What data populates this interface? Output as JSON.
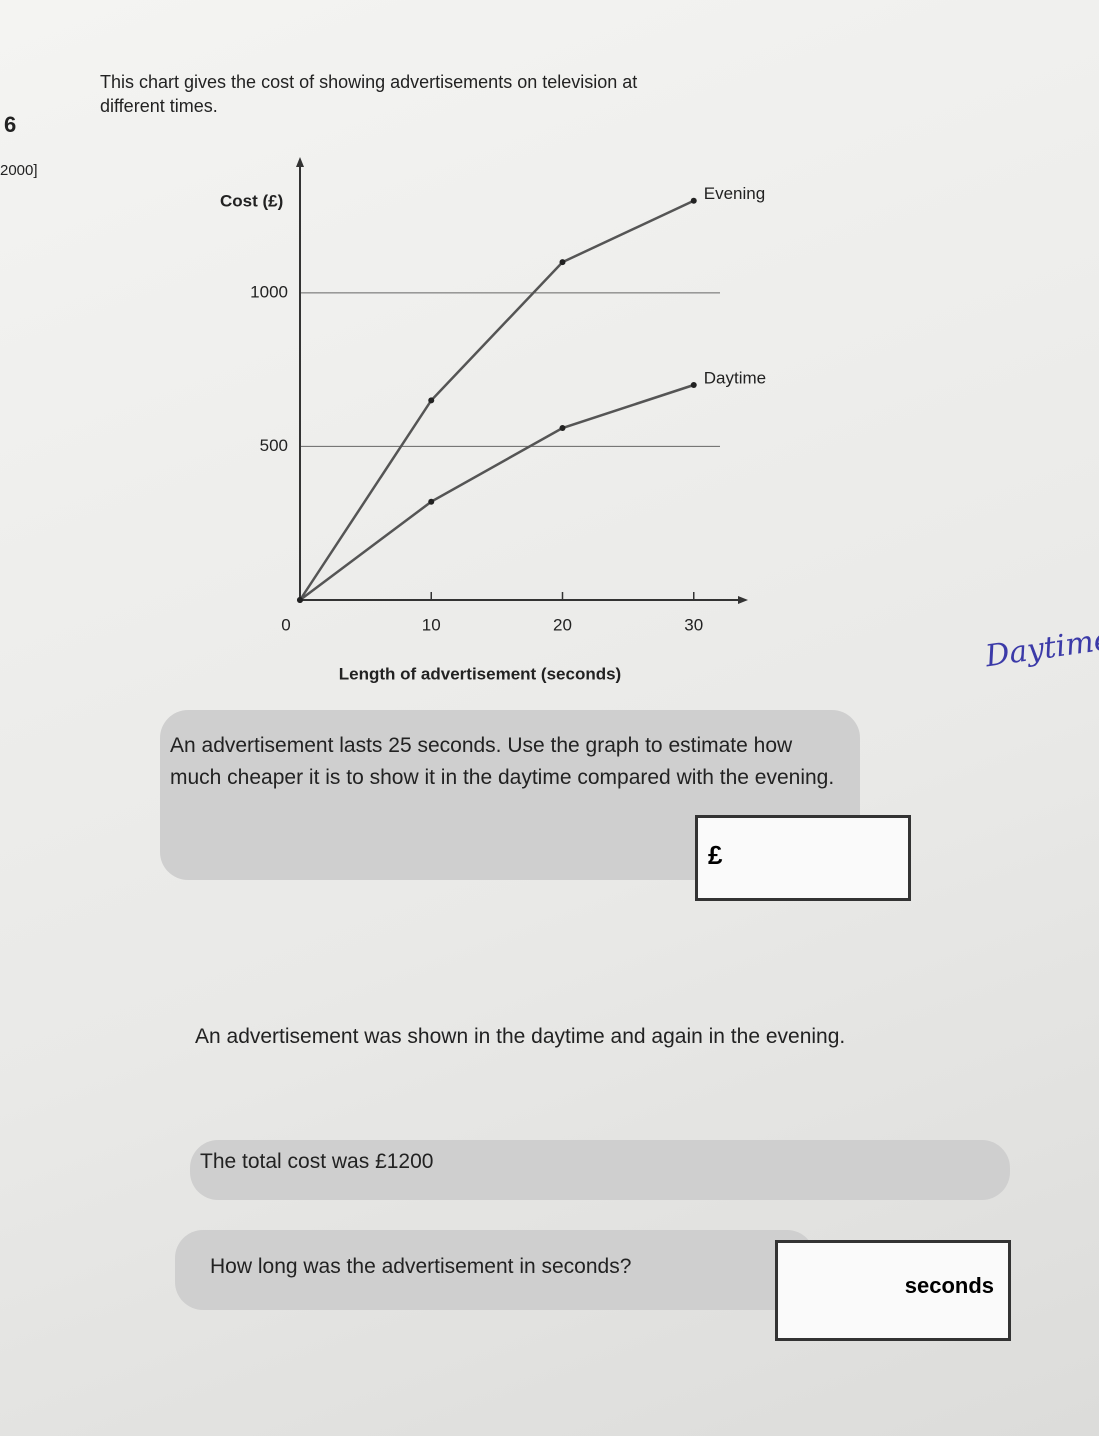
{
  "question_number": "6",
  "margin_note": "2000]",
  "chart_data": {
    "type": "line",
    "title": "This chart gives the cost of showing advertisements on television at different times.",
    "x_label": "Length of advertisement (seconds)",
    "y_label": "Cost (£)",
    "x": [
      0,
      10,
      20,
      30
    ],
    "series": [
      {
        "name": "Evening",
        "color": "#555555",
        "values": [
          0,
          650,
          1100,
          1300
        ]
      },
      {
        "name": "Daytime",
        "color": "#555555",
        "values": [
          0,
          320,
          560,
          700
        ]
      }
    ],
    "xlim": [
      0,
      32
    ],
    "xticks": [
      0,
      10,
      20,
      30
    ],
    "ylim": [
      0,
      1400
    ],
    "yticks": [
      0,
      500,
      1000
    ],
    "grid": true
  },
  "handwritten_note": "Daytime.",
  "question_a": {
    "text": "An advertisement lasts 25 seconds. Use the graph to estimate how much cheaper it is to show it in the daytime compared with the evening.",
    "answer_prefix": "£"
  },
  "question_b": {
    "line1": "An advertisement was shown in the daytime and again in the evening.",
    "line2": "The total cost was £1200",
    "line3": "How long was the advertisement in seconds?",
    "answer_unit": "seconds"
  }
}
